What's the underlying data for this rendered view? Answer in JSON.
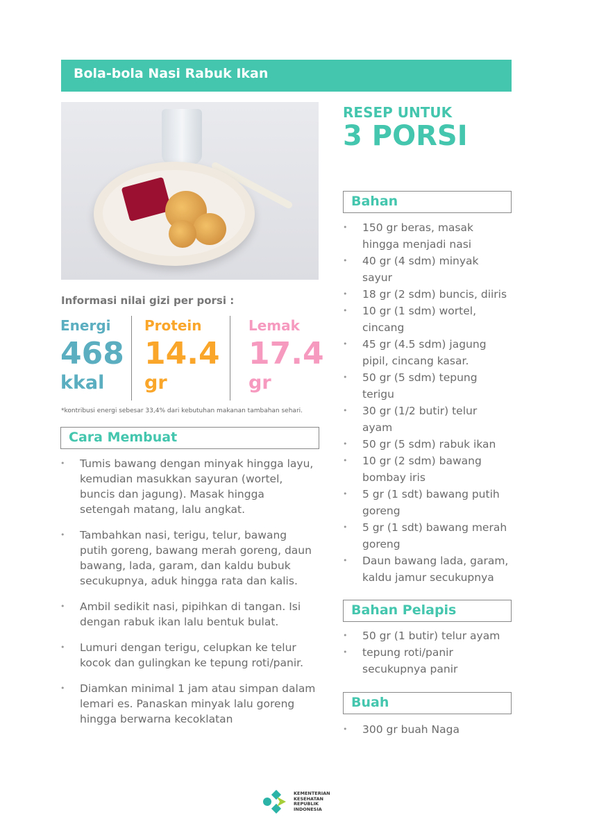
{
  "title": "Bola-bola Nasi Rabuk Ikan",
  "recipe_for": {
    "label": "RESEP UNTUK",
    "portions": "3 PORSI"
  },
  "nutrition": {
    "heading": "Informasi nilai gizi per porsi :",
    "items": [
      {
        "label": "Energi",
        "value": "468",
        "unit": "kkal",
        "color": "#5aaec0"
      },
      {
        "label": "Protein",
        "value": "14.4",
        "unit": "gr",
        "color": "#f9a62b"
      },
      {
        "label": "Lemak",
        "value": "17.4",
        "unit": "gr",
        "color": "#f79ac0"
      }
    ],
    "note": "*kontribusi energi sebesar 33,4% dari kebutuhan makanan tambahan sehari."
  },
  "steps": {
    "heading": "Cara Membuat",
    "items": [
      "Tumis bawang dengan minyak hingga layu, kemudian masukkan sayuran (wortel, buncis dan jagung). Masak hingga setengah matang, lalu angkat.",
      "Tambahkan nasi, terigu, telur, bawang putih goreng, bawang merah goreng, daun bawang, lada, garam, dan kaldu bubuk secukupnya, aduk hingga rata dan kalis.",
      "Ambil sedikit nasi, pipihkan di tangan. Isi dengan rabuk ikan lalu bentuk bulat.",
      "Lumuri dengan terigu, celupkan ke telur kocok dan gulingkan ke tepung roti/panir.",
      "Diamkan minimal 1 jam atau simpan dalam lemari es. Panaskan minyak lalu goreng hingga berwarna kecoklatan"
    ]
  },
  "ingredients": {
    "heading": "Bahan",
    "items": [
      "150 gr beras, masak hingga menjadi nasi",
      "40 gr (4 sdm) minyak sayur",
      "18 gr (2 sdm) buncis, diiris",
      "10 gr (1 sdm) wortel, cincang",
      "45 gr (4.5 sdm) jagung pipil, cincang kasar.",
      "50 gr (5 sdm) tepung terigu",
      "30 gr (1/2 butir) telur ayam",
      "50 gr (5 sdm) rabuk ikan",
      "10 gr (2 sdm) bawang bombay iris",
      "5 gr (1 sdt) bawang putih goreng",
      "5 gr (1 sdt) bawang merah goreng",
      "Daun bawang lada, garam, kaldu jamur secukupnya"
    ]
  },
  "coating": {
    "heading": "Bahan Pelapis",
    "items": [
      "50 gr (1 butir) telur ayam",
      "tepung roti/panir secukupnya panir"
    ]
  },
  "fruit": {
    "heading": "Buah",
    "items": [
      "300 gr buah Naga"
    ]
  },
  "logo": {
    "text": "KEMENTERIAN KESEHATAN REPUBLIK INDONESIA"
  },
  "colors": {
    "accent": "#44c6ae"
  }
}
